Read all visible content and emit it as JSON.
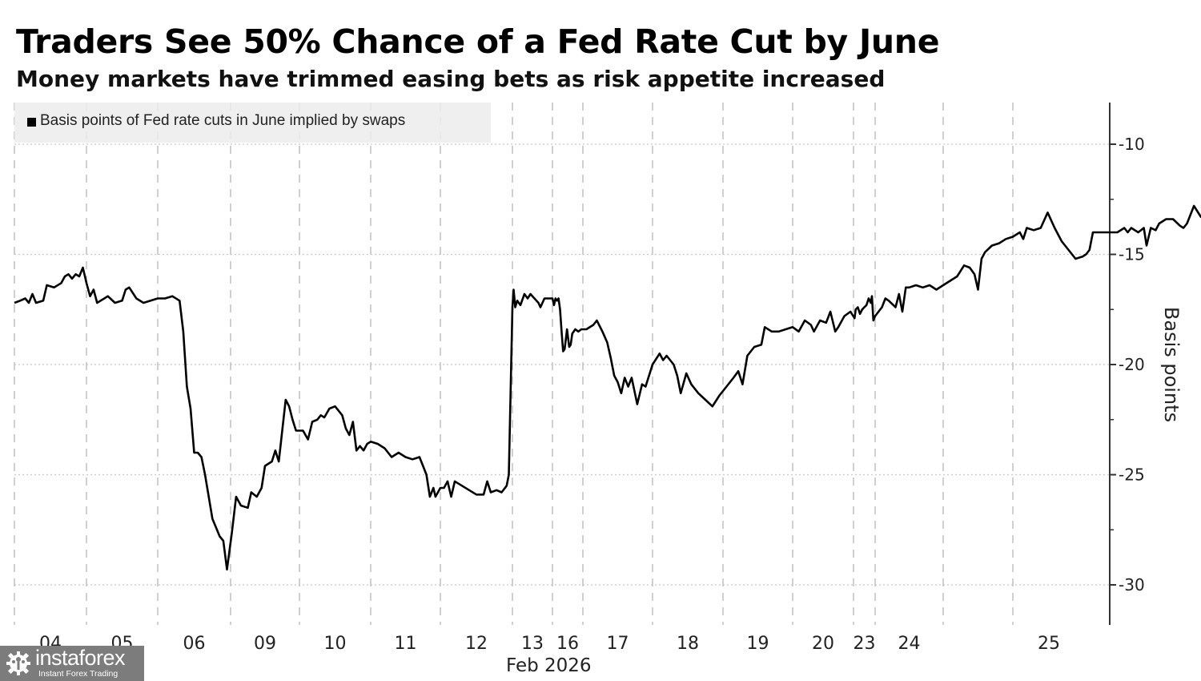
{
  "chart_data": {
    "type": "line",
    "title": "Traders See 50% Chance of a Fed Rate Cut by June",
    "subtitle": "Money markets have trimmed easing bets as risk appetite increased",
    "legend": {
      "position": "top-left",
      "entries": [
        {
          "label": "Basis points of Fed rate cuts in June implied by swaps",
          "color": "#000000"
        }
      ]
    },
    "ylabel": "Basis points",
    "xlabel": "Feb 2026",
    "ylim": [
      -32,
      -8
    ],
    "yticks": [
      -10,
      -15,
      -20,
      -25,
      -30
    ],
    "ytick_labels": [
      "-10",
      "-15",
      "-20",
      "-25",
      "-30"
    ],
    "y_axis_side": "right",
    "grid": {
      "horizontal": "dotted",
      "vertical": "dashed"
    },
    "x_categories": [
      "04",
      "05",
      "06",
      "09",
      "10",
      "11",
      "12",
      "13",
      "16",
      "17",
      "18",
      "19",
      "20",
      "23",
      "24",
      "25"
    ],
    "series": [
      {
        "name": "Basis points of Fed rate cuts in June implied by swaps",
        "color": "#000000",
        "points": [
          [
            0.0,
            -17.2
          ],
          [
            0.08,
            -17.1
          ],
          [
            0.15,
            -17.0
          ],
          [
            0.2,
            -17.2
          ],
          [
            0.25,
            -16.8
          ],
          [
            0.3,
            -17.2
          ],
          [
            0.4,
            -17.1
          ],
          [
            0.45,
            -16.4
          ],
          [
            0.55,
            -16.5
          ],
          [
            0.65,
            -16.3
          ],
          [
            0.7,
            -16.0
          ],
          [
            0.75,
            -15.9
          ],
          [
            0.8,
            -16.1
          ],
          [
            0.85,
            -15.9
          ],
          [
            0.9,
            -16.0
          ],
          [
            0.95,
            -15.6
          ],
          [
            1.0,
            -16.3
          ],
          [
            1.05,
            -16.9
          ],
          [
            1.1,
            -16.6
          ],
          [
            1.15,
            -17.2
          ],
          [
            1.25,
            -17.0
          ],
          [
            1.3,
            -16.9
          ],
          [
            1.4,
            -17.2
          ],
          [
            1.5,
            -17.1
          ],
          [
            1.55,
            -16.6
          ],
          [
            1.6,
            -16.5
          ],
          [
            1.7,
            -17.0
          ],
          [
            1.8,
            -17.2
          ],
          [
            1.9,
            -17.1
          ],
          [
            2.0,
            -17.0
          ],
          [
            2.1,
            -17.0
          ],
          [
            2.2,
            -16.9
          ],
          [
            2.3,
            -17.1
          ],
          [
            2.35,
            -18.5
          ],
          [
            2.4,
            -21.0
          ],
          [
            2.45,
            -22.0
          ],
          [
            2.5,
            -24.0
          ],
          [
            2.55,
            -24.0
          ],
          [
            2.6,
            -24.2
          ],
          [
            2.65,
            -25.0
          ],
          [
            2.7,
            -26.0
          ],
          [
            2.75,
            -27.0
          ],
          [
            2.85,
            -27.8
          ],
          [
            2.9,
            -28.0
          ],
          [
            2.95,
            -29.3
          ],
          [
            3.02,
            -27.6
          ],
          [
            3.08,
            -26.0
          ],
          [
            3.15,
            -26.4
          ],
          [
            3.25,
            -26.5
          ],
          [
            3.3,
            -25.8
          ],
          [
            3.38,
            -26.0
          ],
          [
            3.45,
            -25.6
          ],
          [
            3.5,
            -24.6
          ],
          [
            3.6,
            -24.4
          ],
          [
            3.65,
            -23.9
          ],
          [
            3.7,
            -24.4
          ],
          [
            3.8,
            -21.6
          ],
          [
            3.85,
            -21.9
          ],
          [
            3.9,
            -22.5
          ],
          [
            3.95,
            -23.0
          ],
          [
            4.05,
            -23.0
          ],
          [
            4.12,
            -23.4
          ],
          [
            4.18,
            -22.6
          ],
          [
            4.25,
            -22.5
          ],
          [
            4.3,
            -22.3
          ],
          [
            4.35,
            -22.4
          ],
          [
            4.42,
            -22.0
          ],
          [
            4.5,
            -21.9
          ],
          [
            4.6,
            -22.3
          ],
          [
            4.65,
            -22.9
          ],
          [
            4.7,
            -23.2
          ],
          [
            4.75,
            -22.6
          ],
          [
            4.8,
            -23.9
          ],
          [
            4.85,
            -23.7
          ],
          [
            4.9,
            -23.9
          ],
          [
            4.95,
            -23.6
          ],
          [
            5.0,
            -23.5
          ],
          [
            5.1,
            -23.6
          ],
          [
            5.2,
            -23.8
          ],
          [
            5.3,
            -24.2
          ],
          [
            5.4,
            -24.0
          ],
          [
            5.5,
            -24.2
          ],
          [
            5.6,
            -24.3
          ],
          [
            5.7,
            -24.2
          ],
          [
            5.75,
            -24.6
          ],
          [
            5.8,
            -25.0
          ],
          [
            5.85,
            -26.0
          ],
          [
            5.9,
            -25.6
          ],
          [
            5.93,
            -26.0
          ],
          [
            6.0,
            -25.6
          ],
          [
            6.05,
            -25.6
          ],
          [
            6.1,
            -25.3
          ],
          [
            6.15,
            -26.0
          ],
          [
            6.2,
            -25.3
          ],
          [
            6.3,
            -25.5
          ],
          [
            6.5,
            -25.9
          ],
          [
            6.6,
            -25.9
          ],
          [
            6.65,
            -25.3
          ],
          [
            6.7,
            -25.8
          ],
          [
            6.78,
            -25.7
          ],
          [
            6.85,
            -25.8
          ],
          [
            6.92,
            -25.5
          ],
          [
            6.95,
            -25.0
          ],
          [
            7.0,
            -17.4
          ],
          [
            7.03,
            -16.6
          ],
          [
            7.07,
            -17.4
          ],
          [
            7.12,
            -17.1
          ],
          [
            7.2,
            -17.3
          ],
          [
            7.3,
            -16.8
          ],
          [
            7.38,
            -17.0
          ],
          [
            7.45,
            -16.8
          ],
          [
            7.55,
            -17.0
          ],
          [
            7.65,
            -17.2
          ],
          [
            7.7,
            -17.4
          ],
          [
            7.8,
            -17.0
          ],
          [
            7.9,
            -17.0
          ],
          [
            8.0,
            -17.0
          ],
          [
            8.05,
            -17.3
          ],
          [
            8.1,
            -17.0
          ],
          [
            8.15,
            -17.1
          ],
          [
            8.2,
            -17.0
          ],
          [
            8.25,
            -17.5
          ],
          [
            8.3,
            -18.5
          ],
          [
            8.35,
            -19.4
          ],
          [
            8.4,
            -19.3
          ],
          [
            8.48,
            -18.4
          ],
          [
            8.55,
            -19.2
          ],
          [
            8.6,
            -19.1
          ],
          [
            8.65,
            -18.6
          ],
          [
            8.75,
            -18.4
          ],
          [
            8.85,
            -18.5
          ],
          [
            8.95,
            -18.4
          ],
          [
            9.05,
            -18.4
          ],
          [
            9.15,
            -18.2
          ],
          [
            9.2,
            -18.0
          ],
          [
            9.28,
            -18.5
          ],
          [
            9.35,
            -19.0
          ],
          [
            9.4,
            -19.7
          ],
          [
            9.45,
            -20.5
          ],
          [
            9.5,
            -20.8
          ],
          [
            9.55,
            -21.3
          ],
          [
            9.6,
            -20.6
          ],
          [
            9.65,
            -21.0
          ],
          [
            9.7,
            -20.6
          ],
          [
            9.78,
            -21.8
          ],
          [
            9.85,
            -20.9
          ],
          [
            9.9,
            -21.0
          ],
          [
            10.0,
            -20.0
          ],
          [
            10.1,
            -19.5
          ],
          [
            10.15,
            -19.8
          ],
          [
            10.2,
            -19.6
          ],
          [
            10.3,
            -20.0
          ],
          [
            10.35,
            -20.5
          ],
          [
            10.4,
            -21.3
          ],
          [
            10.48,
            -20.4
          ],
          [
            10.55,
            -20.9
          ],
          [
            10.65,
            -21.3
          ],
          [
            10.75,
            -21.6
          ],
          [
            10.85,
            -21.9
          ],
          [
            10.95,
            -21.4
          ],
          [
            11.05,
            -21.0
          ],
          [
            11.15,
            -20.6
          ],
          [
            11.22,
            -20.3
          ],
          [
            11.28,
            -20.9
          ],
          [
            11.35,
            -19.6
          ],
          [
            11.45,
            -19.2
          ],
          [
            11.55,
            -19.1
          ],
          [
            11.6,
            -18.3
          ],
          [
            11.7,
            -18.5
          ],
          [
            11.8,
            -18.5
          ],
          [
            11.9,
            -18.4
          ],
          [
            12.0,
            -18.3
          ],
          [
            12.1,
            -18.5
          ],
          [
            12.2,
            -18.0
          ],
          [
            12.3,
            -18.2
          ],
          [
            12.35,
            -18.5
          ],
          [
            12.45,
            -18.0
          ],
          [
            12.55,
            -18.1
          ],
          [
            12.62,
            -17.6
          ],
          [
            12.7,
            -18.5
          ],
          [
            12.75,
            -18.3
          ],
          [
            12.85,
            -17.8
          ],
          [
            12.95,
            -17.6
          ],
          [
            13.05,
            -17.9
          ],
          [
            13.1,
            -17.5
          ],
          [
            13.2,
            -17.4
          ],
          [
            13.3,
            -17.7
          ],
          [
            13.4,
            -17.5
          ],
          [
            13.5,
            -17.4
          ],
          [
            13.6,
            -17.3
          ],
          [
            13.7,
            -17.0
          ],
          [
            13.8,
            -17.2
          ],
          [
            13.85,
            -16.9
          ],
          [
            13.92,
            -18.0
          ],
          [
            14.0,
            -17.8
          ],
          [
            14.1,
            -17.4
          ],
          [
            14.15,
            -17.0
          ],
          [
            14.2,
            -17.1
          ],
          [
            14.3,
            -17.4
          ],
          [
            14.35,
            -16.8
          ],
          [
            14.4,
            -17.6
          ],
          [
            14.45,
            -16.5
          ],
          [
            14.5,
            -16.5
          ],
          [
            14.6,
            -16.4
          ],
          [
            14.7,
            -16.5
          ],
          [
            14.8,
            -16.4
          ],
          [
            14.9,
            -16.6
          ],
          [
            15.0,
            -16.4
          ],
          [
            15.1,
            -16.2
          ],
          [
            15.2,
            -16.0
          ],
          [
            15.3,
            -15.5
          ],
          [
            15.38,
            -15.6
          ],
          [
            15.45,
            -15.9
          ],
          [
            15.5,
            -16.6
          ],
          [
            15.55,
            -15.2
          ],
          [
            15.6,
            -14.9
          ],
          [
            15.7,
            -14.6
          ],
          [
            15.8,
            -14.5
          ],
          [
            15.9,
            -14.3
          ],
          [
            16.0,
            -14.2
          ],
          [
            16.1,
            -14.0
          ],
          [
            16.15,
            -14.3
          ],
          [
            16.2,
            -13.8
          ],
          [
            16.3,
            -13.9
          ],
          [
            16.4,
            -13.8
          ],
          [
            16.5,
            -13.1
          ],
          [
            16.6,
            -13.8
          ],
          [
            16.7,
            -14.4
          ],
          [
            16.8,
            -14.8
          ],
          [
            16.9,
            -15.2
          ],
          [
            17.0,
            -15.1
          ],
          [
            17.05,
            -15.0
          ],
          [
            17.1,
            -14.8
          ],
          [
            17.15,
            -14.0
          ],
          [
            17.25,
            -14.0
          ],
          [
            17.5,
            -14.0
          ],
          [
            17.6,
            -13.8
          ],
          [
            17.65,
            -14.0
          ],
          [
            17.7,
            -13.8
          ],
          [
            17.8,
            -14.0
          ],
          [
            17.88,
            -13.8
          ],
          [
            17.92,
            -14.6
          ],
          [
            17.98,
            -13.8
          ],
          [
            18.05,
            -13.9
          ],
          [
            18.1,
            -13.6
          ],
          [
            18.2,
            -13.4
          ],
          [
            18.3,
            -13.4
          ],
          [
            18.4,
            -13.7
          ],
          [
            18.45,
            -13.8
          ],
          [
            18.5,
            -13.6
          ],
          [
            18.6,
            -12.8
          ],
          [
            18.7,
            -13.3
          ],
          [
            18.8,
            -13.2
          ],
          [
            18.9,
            -13.1
          ],
          [
            18.95,
            -13.4
          ],
          [
            19.05,
            -13.1
          ],
          [
            19.15,
            -13.2
          ],
          [
            19.25,
            -13.0
          ],
          [
            19.35,
            -12.8
          ],
          [
            19.45,
            -12.5
          ]
        ]
      }
    ]
  },
  "header": {
    "title": "Traders See 50% Chance of a Fed Rate Cut by June",
    "subtitle": "Money markets have trimmed easing bets as risk appetite increased"
  },
  "legend": {
    "label": "Basis points of Fed rate cuts in June implied by swaps"
  },
  "axis": {
    "ylabel": "Basis points",
    "xunit": "Feb 2026"
  },
  "watermark": {
    "name": "instaforex",
    "tagline": "Instant Forex Trading"
  }
}
